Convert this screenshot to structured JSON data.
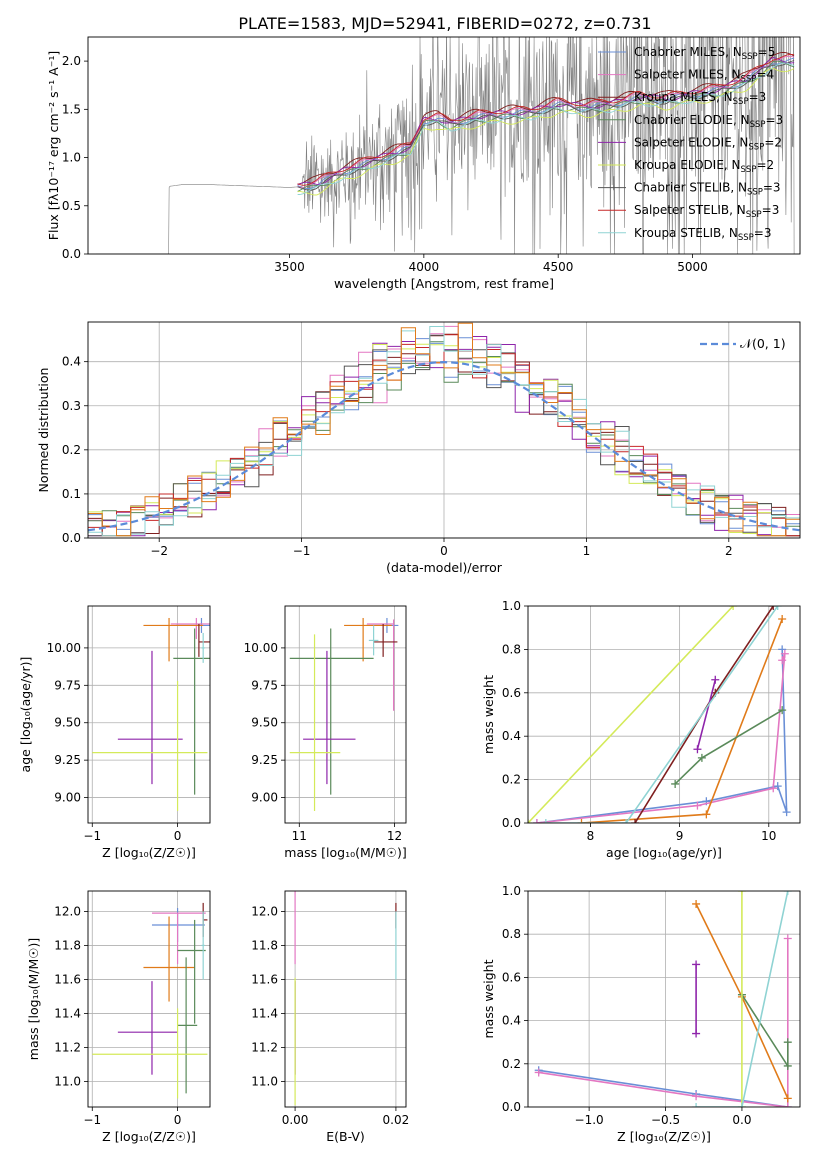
{
  "figure_title": "PLATE=1583, MJD=52941, FIBERID=0272, z=0.731",
  "colors": {
    "series": [
      "#6a8fd6",
      "#e377c2",
      "#7f1f1f",
      "#5a8a5a",
      "#8e24aa",
      "#d4ea5a",
      "#555555",
      "#c62828",
      "#8fd3d3"
    ],
    "orange": "#e07b1a",
    "gauss": "#5b8bd9"
  },
  "legend": [
    {
      "name": "Chabrier MILES, N",
      "sub": "SSP",
      "tail": "=5"
    },
    {
      "name": "Salpeter MILES, N",
      "sub": "SSP",
      "tail": "=4"
    },
    {
      "name": "Kroupa MILES, N",
      "sub": "SSP",
      "tail": "=3"
    },
    {
      "name": "Chabrier ELODIE, N",
      "sub": "SSP",
      "tail": "=3"
    },
    {
      "name": "Salpeter ELODIE, N",
      "sub": "SSP",
      "tail": "=2"
    },
    {
      "name": "Kroupa ELODIE, N",
      "sub": "SSP",
      "tail": "=2"
    },
    {
      "name": "Chabrier STELIB, N",
      "sub": "SSP",
      "tail": "=3"
    },
    {
      "name": "Salpeter STELIB, N",
      "sub": "SSP",
      "tail": "=3"
    },
    {
      "name": "Kroupa STELIB, N",
      "sub": "SSP",
      "tail": "=3"
    }
  ],
  "chart_data": [
    {
      "id": "spectrum",
      "type": "line",
      "xlabel": "wavelength [Angstrom, rest frame]",
      "ylabel": "Flux [fλ10⁻¹⁷ erg cm⁻² s⁻¹ A⁻¹]",
      "xlim": [
        2750,
        5400
      ],
      "ylim": [
        0,
        2.25
      ],
      "xticks": [
        3500,
        4000,
        4500,
        5000
      ],
      "yticks": [
        0.0,
        0.5,
        1.0,
        1.5,
        2.0
      ],
      "grid": false,
      "legend_position": "top-right",
      "model_continuum": {
        "x": [
          3050,
          3100,
          3200,
          3300,
          3400,
          3500,
          3550,
          3600,
          3700,
          3800,
          3900,
          3950,
          4000,
          4050,
          4100,
          4200,
          4300,
          4400,
          4500,
          4600,
          4700,
          4800,
          4900,
          5000,
          5100,
          5200,
          5300
        ],
        "y": [
          0.7,
          0.72,
          0.72,
          0.71,
          0.7,
          0.69,
          0.7,
          0.72,
          0.85,
          0.95,
          1.05,
          1.1,
          1.38,
          1.4,
          1.35,
          1.42,
          1.45,
          1.47,
          1.55,
          1.52,
          1.55,
          1.62,
          1.6,
          1.65,
          1.7,
          1.8,
          2.0
        ]
      },
      "observed_noisy_from": 3550
    },
    {
      "id": "residuals",
      "type": "step",
      "xlabel": "(data-model)/error",
      "ylabel": "Normed distribution",
      "xlim": [
        -2.5,
        2.5
      ],
      "ylim": [
        0,
        0.49
      ],
      "xticks": [
        -2,
        -1,
        0,
        1,
        2
      ],
      "yticks": [
        0.0,
        0.1,
        0.2,
        0.3,
        0.4
      ],
      "grid": true,
      "legend_position": "top-right",
      "gauss_label": "𝒩(0, 1)",
      "bin_width": 0.1
    },
    {
      "id": "age-vs-z",
      "type": "errorbar",
      "xlabel": "Z [log₁₀(Z/Z☉)]",
      "ylabel": "age  [log₁₀(age/yr)]",
      "xlim": [
        -1.05,
        0.38
      ],
      "ylim": [
        8.83,
        10.28
      ],
      "xticks": [
        -1,
        0
      ],
      "yticks": [
        9.0,
        9.25,
        9.5,
        9.75,
        10.0
      ],
      "ytick_labels": [
        "9.00",
        "9.25",
        "9.50",
        "9.75",
        "10.00"
      ],
      "grid": true,
      "points": [
        {
          "c": 0,
          "x": 0.28,
          "xerr": [
            0.3,
            0.3
          ],
          "y": 10.15,
          "yerr": [
            0.05,
            0.05
          ]
        },
        {
          "c": 1,
          "x": 0.22,
          "xerr": [
            0.3,
            0.3
          ],
          "y": 10.16,
          "yerr": [
            0.1,
            0.04
          ]
        },
        {
          "c": "orange",
          "x": -0.1,
          "xerr": [
            0.3,
            0.4
          ],
          "y": 10.15,
          "yerr": [
            0.24,
            0.05
          ]
        },
        {
          "c": 2,
          "x": 0.25,
          "xerr": [
            0.0,
            0.33
          ],
          "y": 10.04,
          "yerr": [
            0.1,
            0.12
          ]
        },
        {
          "c": 3,
          "x": 0.2,
          "xerr": [
            0.25,
            0.23
          ],
          "y": 9.93,
          "yerr": [
            0.91,
            0.2
          ]
        },
        {
          "c": 4,
          "x": -0.3,
          "xerr": [
            0.4,
            0.36
          ],
          "y": 9.39,
          "yerr": [
            0.3,
            0.59
          ]
        },
        {
          "c": 5,
          "x": 0.0,
          "xerr": [
            1.0,
            0.35
          ],
          "y": 9.3,
          "yerr": [
            0.39,
            0.48
          ]
        },
        {
          "c": 8,
          "x": 0.3,
          "xerr": [
            0.02,
            0.02
          ],
          "y": 10.0,
          "yerr": [
            0.1,
            0.1
          ]
        }
      ]
    },
    {
      "id": "age-vs-mass",
      "type": "errorbar",
      "xlabel": "mass [log₁₀(M/M☉)]",
      "ylabel": "",
      "xlim": [
        10.85,
        12.12
      ],
      "ylim": [
        8.83,
        10.28
      ],
      "xticks": [
        11,
        12
      ],
      "yticks": [
        9.0,
        9.25,
        9.5,
        9.75,
        10.0
      ],
      "ytick_labels": [
        "9.00",
        "9.25",
        "9.50",
        "9.75",
        "10.00"
      ],
      "grid": true,
      "points": [
        {
          "c": 0,
          "x": 11.92,
          "xerr": [
            0.22,
            0.12
          ],
          "y": 10.15,
          "yerr": [
            0.05,
            0.05
          ]
        },
        {
          "c": 1,
          "x": 11.99,
          "xerr": [
            0.28,
            0.0
          ],
          "y": 10.16,
          "yerr": [
            0.58,
            0.03
          ]
        },
        {
          "c": "orange",
          "x": 11.67,
          "xerr": [
            0.2,
            0.3
          ],
          "y": 10.15,
          "yerr": [
            0.24,
            0.05
          ]
        },
        {
          "c": 2,
          "x": 11.88,
          "xerr": [
            0.1,
            0.15
          ],
          "y": 10.04,
          "yerr": [
            0.1,
            0.12
          ]
        },
        {
          "c": 3,
          "x": 11.33,
          "xerr": [
            0.43,
            0.45
          ],
          "y": 9.93,
          "yerr": [
            0.91,
            0.2
          ]
        },
        {
          "c": 4,
          "x": 11.29,
          "xerr": [
            0.25,
            0.3
          ],
          "y": 9.39,
          "yerr": [
            0.3,
            0.59
          ]
        },
        {
          "c": 5,
          "x": 11.16,
          "xerr": [
            0.26,
            0.27
          ],
          "y": 9.3,
          "yerr": [
            0.39,
            0.79
          ]
        },
        {
          "c": 8,
          "x": 11.78,
          "xerr": [
            0.05,
            0.05
          ],
          "y": 10.05,
          "yerr": [
            0.1,
            0.1
          ]
        }
      ]
    },
    {
      "id": "massweight-vs-age",
      "type": "line",
      "xlabel": "age  [log₁₀(age/yr)]",
      "ylabel": "mass weight",
      "xlim": [
        7.3,
        10.35
      ],
      "ylim": [
        0,
        1.0
      ],
      "xticks": [
        8,
        9,
        10
      ],
      "yticks": [
        0.0,
        0.2,
        0.4,
        0.6,
        0.8,
        1.0
      ],
      "grid": true,
      "series": [
        {
          "c": 0,
          "x": [
            7.4,
            9.3,
            10.1,
            10.2,
            10.15
          ],
          "y": [
            0.0,
            0.1,
            0.17,
            0.05,
            0.8
          ]
        },
        {
          "c": 1,
          "x": [
            7.4,
            9.2,
            10.05,
            10.18,
            10.15
          ],
          "y": [
            0.0,
            0.08,
            0.16,
            0.78,
            0.75
          ]
        },
        {
          "c": "orange",
          "x": [
            7.9,
            9.3,
            10.15
          ],
          "y": [
            0.0,
            0.04,
            0.94
          ]
        },
        {
          "c": 2,
          "x": [
            8.5,
            9.4,
            10.05
          ],
          "y": [
            0.0,
            0.6,
            1.0
          ]
        },
        {
          "c": 3,
          "x": [
            8.95,
            9.25,
            10.15
          ],
          "y": [
            0.18,
            0.3,
            0.52
          ]
        },
        {
          "c": 4,
          "x": [
            9.2,
            9.4
          ],
          "y": [
            0.34,
            0.66
          ]
        },
        {
          "c": 5,
          "x": [
            7.3,
            9.6
          ],
          "y": [
            0.0,
            1.0
          ]
        },
        {
          "c": 8,
          "x": [
            7.5,
            8.4,
            10.1
          ],
          "y": [
            0.0,
            0.0,
            1.0
          ]
        }
      ]
    },
    {
      "id": "mass-vs-z",
      "type": "errorbar",
      "xlabel": "Z [log₁₀(Z/Z☉)]",
      "ylabel": "mass [log₁₀(M/M☉)]",
      "xlim": [
        -1.05,
        0.38
      ],
      "ylim": [
        10.85,
        12.12
      ],
      "xticks": [
        -1,
        0
      ],
      "yticks": [
        11.0,
        11.2,
        11.4,
        11.6,
        11.8,
        12.0
      ],
      "ytick_labels": [
        "11.0",
        "11.2",
        "11.4",
        "11.6",
        "11.8",
        "12.0"
      ],
      "grid": true,
      "points": [
        {
          "c": 0,
          "x": 0.0,
          "xerr": [
            0.3,
            0.32
          ],
          "y": 11.92,
          "yerr": [
            0.1,
            0.1
          ]
        },
        {
          "c": 1,
          "x": 0.0,
          "xerr": [
            0.3,
            0.33
          ],
          "y": 11.99,
          "yerr": [
            0.3,
            0.0
          ]
        },
        {
          "c": "orange",
          "x": -0.1,
          "xerr": [
            0.3,
            0.3
          ],
          "y": 11.67,
          "yerr": [
            0.2,
            0.3
          ]
        },
        {
          "c": 2,
          "x": 0.3,
          "xerr": [
            0.0,
            0.05
          ],
          "y": 11.95,
          "yerr": [
            0.1,
            0.1
          ]
        },
        {
          "c": 3,
          "x": 0.2,
          "xerr": [
            0.2,
            0.13
          ],
          "y": 11.77,
          "yerr": [
            0.43,
            0.18
          ]
        },
        {
          "c": 3,
          "x": 0.1,
          "xerr": [
            0.1,
            0.13
          ],
          "y": 11.33,
          "yerr": [
            0.4,
            0.4
          ]
        },
        {
          "c": 4,
          "x": -0.3,
          "xerr": [
            0.4,
            0.3
          ],
          "y": 11.29,
          "yerr": [
            0.25,
            0.3
          ]
        },
        {
          "c": 5,
          "x": 0.0,
          "xerr": [
            1.0,
            0.35
          ],
          "y": 11.16,
          "yerr": [
            0.26,
            0.27
          ]
        },
        {
          "c": 8,
          "x": 0.3,
          "xerr": [
            0.02,
            0.02
          ],
          "y": 11.8,
          "yerr": [
            0.2,
            0.2
          ]
        }
      ]
    },
    {
      "id": "mass-vs-ebv",
      "type": "errorbar",
      "xlabel": "E(B-V)",
      "ylabel": "",
      "xlim": [
        -0.002,
        0.022
      ],
      "ylim": [
        10.85,
        12.12
      ],
      "xticks": [
        0.0,
        0.02
      ],
      "xtick_labels": [
        "0.00",
        "0.02"
      ],
      "yticks": [
        11.0,
        11.2,
        11.4,
        11.6,
        11.8,
        12.0
      ],
      "ytick_labels": [
        "11.0",
        "11.2",
        "11.4",
        "11.6",
        "11.8",
        "12.0"
      ],
      "grid": true,
      "points": [
        {
          "c": 1,
          "x": 0.0,
          "xerr": [
            0.0,
            0.0
          ],
          "y": 11.99,
          "yerr": [
            0.3,
            0.15
          ]
        },
        {
          "c": 4,
          "x": 0.0,
          "xerr": [
            0.0,
            0.0
          ],
          "y": 11.29,
          "yerr": [
            0.25,
            0.3
          ]
        },
        {
          "c": 5,
          "x": 0.0,
          "xerr": [
            0.0,
            0.0
          ],
          "y": 11.16,
          "yerr": [
            0.3,
            0.45
          ]
        },
        {
          "c": 2,
          "x": 0.02,
          "xerr": [
            0.0,
            0.0
          ],
          "y": 11.95,
          "yerr": [
            0.05,
            0.1
          ]
        },
        {
          "c": 8,
          "x": 0.02,
          "xerr": [
            0.0,
            0.0
          ],
          "y": 11.8,
          "yerr": [
            0.2,
            0.2
          ]
        }
      ]
    },
    {
      "id": "massweight-vs-z",
      "type": "line",
      "xlabel": "Z [log₁₀(Z/Z☉)]",
      "ylabel": "mass weight",
      "xlim": [
        -1.4,
        0.38
      ],
      "ylim": [
        0,
        1.0
      ],
      "xticks": [
        -1.0,
        -0.5,
        0.0
      ],
      "xtick_labels": [
        "−1.0",
        "−0.5",
        "0.0"
      ],
      "yticks": [
        0.0,
        0.2,
        0.4,
        0.6,
        0.8,
        1.0
      ],
      "grid": true,
      "series": [
        {
          "c": 0,
          "x": [
            -1.33,
            -0.3,
            0.3
          ],
          "y": [
            0.17,
            0.06,
            0.0
          ]
        },
        {
          "c": 1,
          "x": [
            -1.33,
            -0.3,
            0.3,
            0.3
          ],
          "y": [
            0.16,
            0.05,
            0.0,
            0.78
          ]
        },
        {
          "c": "orange",
          "x": [
            -0.3,
            0.0,
            0.3
          ],
          "y": [
            0.94,
            0.51,
            0.04
          ]
        },
        {
          "c": 3,
          "x": [
            0.0,
            0.3,
            0.3
          ],
          "y": [
            0.52,
            0.19,
            0.3
          ]
        },
        {
          "c": 4,
          "x": [
            -0.3,
            -0.3
          ],
          "y": [
            0.34,
            0.66
          ]
        },
        {
          "c": 5,
          "x": [
            0.0,
            0.0
          ],
          "y": [
            0.0,
            1.0
          ]
        },
        {
          "c": 8,
          "x": [
            -0.3,
            0.0,
            0.3
          ],
          "y": [
            0.0,
            0.0,
            1.0
          ]
        }
      ]
    }
  ]
}
